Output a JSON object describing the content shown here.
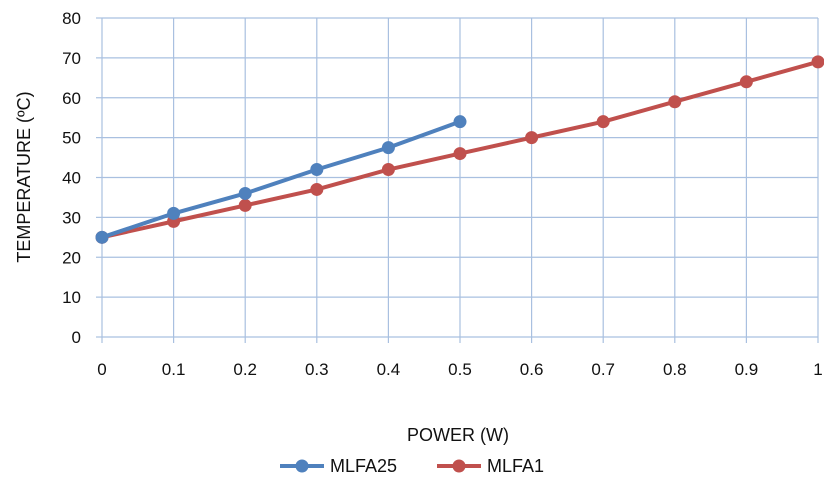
{
  "chart_data": {
    "type": "line",
    "title": "",
    "xlabel": "POWER (W)",
    "ylabel": "TEMPERATURE (ºC)",
    "xlim": [
      0,
      1
    ],
    "ylim": [
      0,
      80
    ],
    "x_ticks": [
      "0",
      "0.1",
      "0.2",
      "0.3",
      "0.4",
      "0.5",
      "0.6",
      "0.7",
      "0.8",
      "0.9",
      "1"
    ],
    "y_ticks": [
      "0",
      "10",
      "20",
      "30",
      "40",
      "50",
      "60",
      "70",
      "80"
    ],
    "grid": true,
    "legend_position": "bottom",
    "series": [
      {
        "name": "MLFA25",
        "color": "#4f81bd",
        "x": [
          0,
          0.1,
          0.2,
          0.3,
          0.4,
          0.5
        ],
        "y": [
          25,
          31,
          36,
          42,
          47.5,
          54
        ]
      },
      {
        "name": "MLFA1",
        "color": "#c0504d",
        "x": [
          0,
          0.1,
          0.2,
          0.3,
          0.4,
          0.5,
          0.6,
          0.7,
          0.8,
          0.9,
          1
        ],
        "y": [
          25,
          29,
          33,
          37,
          42,
          46,
          50,
          54,
          59,
          64,
          69
        ]
      }
    ],
    "grid_color": "#a9c0e0",
    "axis_color": "#a9c0e0"
  }
}
